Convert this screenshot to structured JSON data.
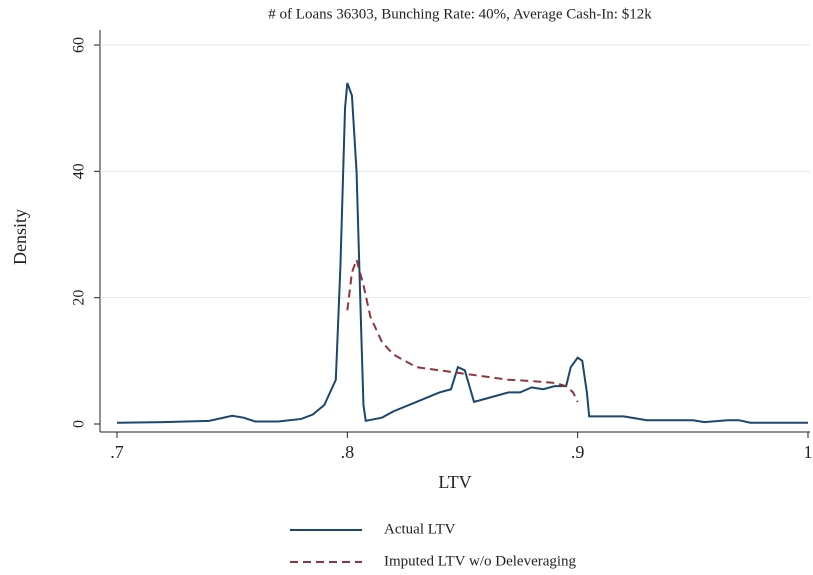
{
  "chart_data": {
    "type": "line",
    "title": "# of Loans 36303, Bunching Rate: 40%, Average Cash-In: $12k",
    "x_label": "LTV",
    "y_label": "Density",
    "xlim": [
      0.7,
      1.0
    ],
    "ylim": [
      0,
      62
    ],
    "xticks": [
      {
        "value": 0.7,
        "label": ".7"
      },
      {
        "value": 0.8,
        "label": ".8"
      },
      {
        "value": 0.9,
        "label": ".9"
      },
      1
    ],
    "yticks": [
      0,
      20,
      40,
      60
    ],
    "grid": true,
    "series": [
      {
        "name": "Actual LTV",
        "color": "#1a476f",
        "style": "solid",
        "x": [
          0.7,
          0.72,
          0.74,
          0.75,
          0.755,
          0.76,
          0.77,
          0.78,
          0.785,
          0.79,
          0.795,
          0.797,
          0.799,
          0.8,
          0.802,
          0.804,
          0.806,
          0.807,
          0.808,
          0.815,
          0.82,
          0.83,
          0.84,
          0.845,
          0.848,
          0.851,
          0.853,
          0.855,
          0.86,
          0.87,
          0.875,
          0.88,
          0.885,
          0.89,
          0.895,
          0.897,
          0.9,
          0.902,
          0.904,
          0.905,
          0.92,
          0.93,
          0.95,
          0.955,
          0.965,
          0.97,
          0.975,
          1.0
        ],
        "values": [
          0.2,
          0.3,
          0.5,
          1.3,
          1.0,
          0.4,
          0.4,
          0.8,
          1.5,
          3,
          7,
          25,
          50,
          54,
          52,
          40,
          15,
          3,
          0.5,
          1,
          2,
          3.5,
          5,
          5.5,
          9,
          8.5,
          6,
          3.5,
          4,
          5,
          5,
          5.8,
          5.5,
          6,
          6,
          9,
          10.5,
          10,
          5,
          1.2,
          1.2,
          0.6,
          0.6,
          0.3,
          0.6,
          0.6,
          0.2,
          0.2
        ]
      },
      {
        "name": "Imputed LTV w/o Deleveraging",
        "color": "#90353b",
        "style": "dashed",
        "x": [
          0.8,
          0.802,
          0.804,
          0.807,
          0.81,
          0.815,
          0.82,
          0.83,
          0.84,
          0.85,
          0.86,
          0.87,
          0.88,
          0.89,
          0.895,
          0.898,
          0.9
        ],
        "values": [
          18,
          24,
          26,
          22,
          17,
          13,
          11,
          9,
          8.5,
          8,
          7.5,
          7,
          6.8,
          6.5,
          6,
          5,
          3.5
        ]
      }
    ]
  }
}
